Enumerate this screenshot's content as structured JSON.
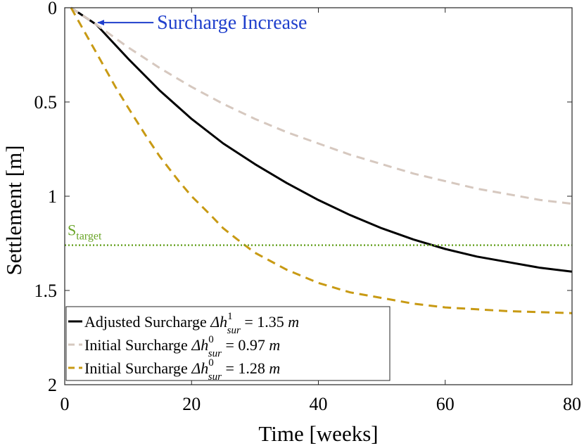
{
  "chart_data": {
    "type": "line",
    "title": "",
    "xlabel": "Time [weeks]",
    "ylabel": "Settlement [m]",
    "xlim": [
      0,
      80
    ],
    "ylim": [
      0,
      2
    ],
    "y_reversed": true,
    "xticks": [
      0,
      20,
      40,
      60,
      80
    ],
    "yticks": [
      0,
      0.5,
      1,
      1.5,
      2
    ],
    "xtick_labels": [
      "0",
      "20",
      "40",
      "60",
      "80"
    ],
    "ytick_labels": [
      "0",
      "0.5",
      "1",
      "1.5",
      "2"
    ],
    "grid": false,
    "legend_location": "bottom-left",
    "series": [
      {
        "name": "Adjusted Surcharge",
        "legend_prefix": "Adjusted Surcharge",
        "legend_symbol": "Δh",
        "legend_sup": "1",
        "legend_sub": "sur",
        "legend_value": "= 1.35",
        "legend_unit": "m",
        "color": "#000000",
        "style": "solid",
        "x": [
          1,
          5,
          10,
          15,
          20,
          25,
          30,
          35,
          40,
          45,
          50,
          55,
          60,
          65,
          70,
          75,
          80
        ],
        "y": [
          0,
          0.09,
          0.27,
          0.44,
          0.59,
          0.72,
          0.83,
          0.93,
          1.02,
          1.1,
          1.17,
          1.23,
          1.28,
          1.32,
          1.35,
          1.38,
          1.4
        ]
      },
      {
        "name": "Initial Surcharge 0.97 m",
        "legend_prefix": "Initial Surcharge",
        "legend_symbol": "Δh",
        "legend_sup": "0",
        "legend_sub": "sur",
        "legend_value": "= 0.97",
        "legend_unit": "m",
        "color": "#d6c8bf",
        "style": "dashed",
        "x": [
          1,
          5,
          10,
          15,
          20,
          25,
          30,
          35,
          40,
          45,
          50,
          55,
          60,
          65,
          70,
          75,
          80
        ],
        "y": [
          0,
          0.09,
          0.21,
          0.32,
          0.42,
          0.51,
          0.59,
          0.66,
          0.72,
          0.78,
          0.83,
          0.88,
          0.92,
          0.96,
          0.99,
          1.02,
          1.04
        ]
      },
      {
        "name": "Initial Surcharge 1.28 m",
        "legend_prefix": "Initial Surcharge",
        "legend_symbol": "Δh",
        "legend_sup": "0",
        "legend_sub": "sur",
        "legend_value": "= 1.28",
        "legend_unit": "m",
        "color": "#c89a14",
        "style": "dashed",
        "x": [
          1,
          3,
          5,
          8,
          10,
          13,
          15,
          18,
          20,
          23,
          25,
          28,
          30,
          35,
          40,
          45,
          50,
          55,
          60,
          65,
          70,
          75,
          80
        ],
        "y": [
          0,
          0.12,
          0.24,
          0.42,
          0.53,
          0.69,
          0.79,
          0.92,
          1.0,
          1.1,
          1.17,
          1.25,
          1.3,
          1.39,
          1.46,
          1.51,
          1.54,
          1.57,
          1.59,
          1.6,
          1.61,
          1.615,
          1.62
        ]
      }
    ],
    "reference_line": {
      "name": "S target",
      "label_main": "S",
      "label_sub": "target",
      "y": 1.26,
      "color": "#6aa528",
      "style": "dotted"
    },
    "annotation": {
      "text": "Surcharge Increase",
      "color": "#1f3fcc",
      "arrow_to": [
        5,
        0.09
      ],
      "arrow_from": [
        14,
        0.09
      ]
    }
  }
}
